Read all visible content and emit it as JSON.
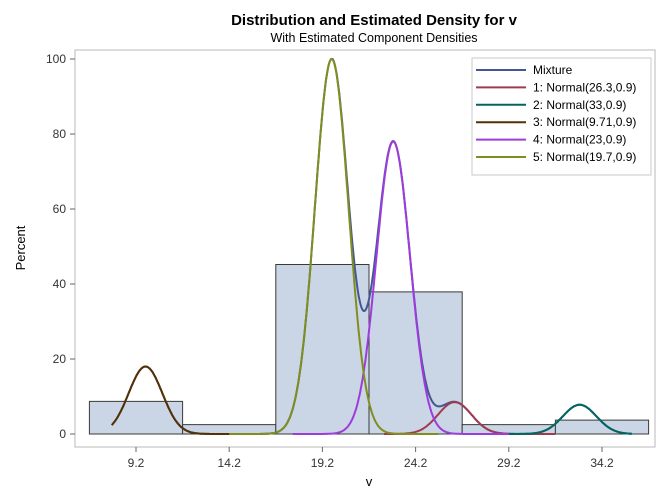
{
  "chart_data": {
    "type": "bar",
    "title": "Distribution and Estimated Density for v",
    "subtitle": "With Estimated Component Densities",
    "xlabel": "v",
    "ylabel": "Percent",
    "xticks": [
      9.2,
      14.2,
      19.2,
      24.2,
      29.2,
      34.2
    ],
    "yticks": [
      0,
      20,
      40,
      60,
      80,
      100
    ],
    "xlim": [
      5.9,
      37.5
    ],
    "ylim": [
      0,
      103
    ],
    "grid": false,
    "legend_position": "top-right",
    "histogram": {
      "bin_width": 5,
      "bin_midpoints": [
        9.2,
        14.2,
        19.2,
        24.2,
        29.2,
        34.2
      ],
      "percent": [
        8.7,
        2.5,
        45.2,
        37.9,
        2.5,
        3.7
      ],
      "fill": "#CAD5E5",
      "stroke": "#3A3A3A"
    },
    "density_series": [
      {
        "name": "Mixture",
        "color": "#445694",
        "x_range": [
          7.9,
          35.8
        ]
      },
      {
        "name": "1: Normal(26.3,0.9)",
        "mean": 26.3,
        "sd": 0.9,
        "peak_percent": 8.5,
        "color": "#A23A4E",
        "x_range": [
          22.5,
          31.7
        ]
      },
      {
        "name": "2: Normal(33,0.9)",
        "mean": 33,
        "sd": 0.9,
        "peak_percent": 7.8,
        "color": "#01665E",
        "x_range": [
          29.0,
          35.8
        ]
      },
      {
        "name": "3: Normal(9.71,0.9)",
        "mean": 9.71,
        "sd": 0.9,
        "peak_percent": 18,
        "color": "#543005",
        "x_range": [
          7.9,
          14.2
        ]
      },
      {
        "name": "4: Normal(23,0.9)",
        "mean": 23,
        "sd": 0.9,
        "peak_percent": 78,
        "color": "#9D3CDB",
        "x_range": [
          17.6,
          29.2
        ]
      },
      {
        "name": "5: Normal(19.7,0.9)",
        "mean": 19.7,
        "sd": 0.9,
        "peak_percent": 100,
        "color": "#7F8E1F",
        "x_range": [
          14.2,
          25.4
        ]
      }
    ]
  }
}
